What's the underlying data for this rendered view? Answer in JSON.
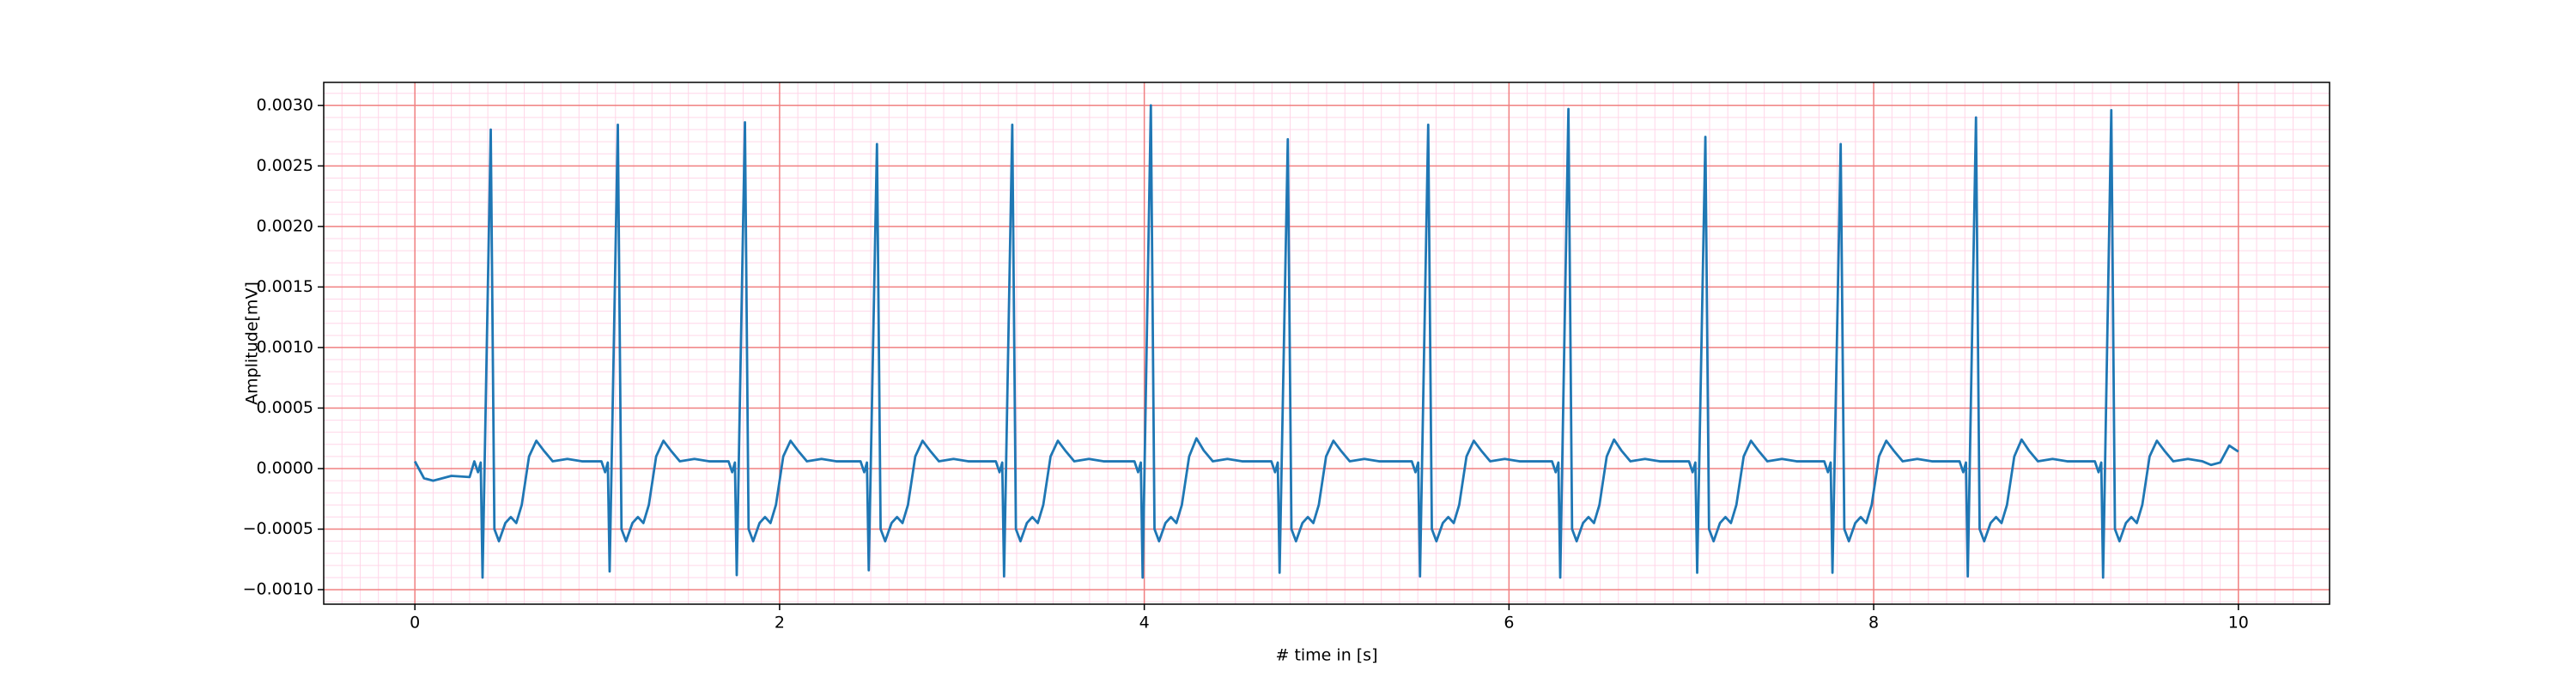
{
  "chart_data": {
    "type": "line",
    "xlabel": "# time in [s]",
    "ylabel": "Amplitude[mV]",
    "color": "#1f77b4",
    "grid": true,
    "minor_grid": true,
    "xlim": [
      -0.5,
      10.5
    ],
    "xticks": [
      0,
      2,
      4,
      6,
      8,
      10
    ],
    "ylim": [
      -0.00112,
      0.00319
    ],
    "yticks": [
      {
        "value": -0.001,
        "label": "−0.0010"
      },
      {
        "value": -0.0005,
        "label": "−0.0005"
      },
      {
        "value": 0,
        "label": "0.0000"
      },
      {
        "value": 0.0005,
        "label": "0.0005"
      },
      {
        "value": 0.001,
        "label": "0.0010"
      },
      {
        "value": 0.0015,
        "label": "0.0015"
      },
      {
        "value": 0.002,
        "label": "0.0020"
      },
      {
        "value": 0.0025,
        "label": "0.0025"
      },
      {
        "value": 0.003,
        "label": "0.0030"
      }
    ],
    "x": [
      0,
      0.05,
      0.1,
      0.2,
      0.3,
      0.326,
      0.346,
      0.361,
      0.371,
      0.416,
      0.436,
      0.461,
      0.496,
      0.526,
      0.556,
      0.586,
      0.626,
      0.666,
      0.706,
      0.756,
      0.836,
      0.916,
      1.023,
      1.043,
      1.058,
      1.068,
      1.113,
      1.133,
      1.158,
      1.193,
      1.223,
      1.253,
      1.283,
      1.323,
      1.363,
      1.403,
      1.453,
      1.533,
      1.613,
      1.72,
      1.74,
      1.755,
      1.765,
      1.81,
      1.83,
      1.855,
      1.89,
      1.92,
      1.95,
      1.98,
      2.02,
      2.06,
      2.1,
      2.15,
      2.23,
      2.31,
      2.444,
      2.464,
      2.479,
      2.489,
      2.534,
      2.554,
      2.579,
      2.614,
      2.644,
      2.674,
      2.704,
      2.744,
      2.784,
      2.824,
      2.874,
      2.954,
      3.034,
      3.186,
      3.206,
      3.221,
      3.231,
      3.276,
      3.296,
      3.321,
      3.356,
      3.386,
      3.416,
      3.446,
      3.486,
      3.526,
      3.566,
      3.616,
      3.696,
      3.776,
      3.946,
      3.966,
      3.981,
      3.991,
      4.036,
      4.056,
      4.081,
      4.116,
      4.146,
      4.176,
      4.206,
      4.246,
      4.286,
      4.326,
      4.376,
      4.456,
      4.536,
      4.697,
      4.717,
      4.732,
      4.742,
      4.787,
      4.807,
      4.832,
      4.867,
      4.897,
      4.927,
      4.957,
      4.997,
      5.037,
      5.077,
      5.127,
      5.207,
      5.287,
      5.467,
      5.487,
      5.502,
      5.512,
      5.557,
      5.577,
      5.602,
      5.637,
      5.667,
      5.697,
      5.727,
      5.767,
      5.807,
      5.847,
      5.897,
      5.977,
      6.057,
      6.236,
      6.256,
      6.271,
      6.281,
      6.326,
      6.346,
      6.371,
      6.406,
      6.436,
      6.466,
      6.496,
      6.536,
      6.576,
      6.616,
      6.666,
      6.746,
      6.826,
      6.987,
      7.007,
      7.022,
      7.032,
      7.077,
      7.097,
      7.122,
      7.157,
      7.187,
      7.217,
      7.247,
      7.287,
      7.327,
      7.367,
      7.417,
      7.497,
      7.577,
      7.729,
      7.749,
      7.764,
      7.774,
      7.819,
      7.839,
      7.864,
      7.899,
      7.929,
      7.959,
      7.989,
      8.029,
      8.069,
      8.109,
      8.159,
      8.239,
      8.319,
      8.471,
      8.491,
      8.506,
      8.516,
      8.561,
      8.581,
      8.606,
      8.641,
      8.671,
      8.701,
      8.731,
      8.771,
      8.811,
      8.851,
      8.901,
      8.981,
      9.061,
      9.213,
      9.233,
      9.248,
      9.258,
      9.303,
      9.323,
      9.348,
      9.383,
      9.413,
      9.443,
      9.473,
      9.513,
      9.553,
      9.593,
      9.643,
      9.723,
      9.803,
      9.85,
      9.9,
      9.95,
      9.98,
      10.0
    ],
    "values": [
      6e-05,
      -8e-05,
      -0.0001,
      -6e-05,
      -7e-05,
      6e-05,
      -3e-05,
      5e-05,
      -0.0009,
      0.0028,
      -0.0005,
      -0.0006,
      -0.00045,
      -0.0004,
      -0.00045,
      -0.0003,
      0.0001,
      0.00023,
      0.00015,
      6e-05,
      8e-05,
      6e-05,
      6e-05,
      -3e-05,
      5e-05,
      -0.00085,
      0.00284,
      -0.0005,
      -0.0006,
      -0.00045,
      -0.0004,
      -0.00045,
      -0.0003,
      0.0001,
      0.00023,
      0.00015,
      6e-05,
      8e-05,
      6e-05,
      6e-05,
      -3e-05,
      5e-05,
      -0.00088,
      0.00286,
      -0.0005,
      -0.0006,
      -0.00045,
      -0.0004,
      -0.00045,
      -0.0003,
      0.0001,
      0.00023,
      0.00015,
      6e-05,
      8e-05,
      6e-05,
      6e-05,
      -3e-05,
      5e-05,
      -0.00084,
      0.00268,
      -0.0005,
      -0.0006,
      -0.00045,
      -0.0004,
      -0.00045,
      -0.0003,
      0.0001,
      0.00023,
      0.00015,
      6e-05,
      8e-05,
      6e-05,
      6e-05,
      -3e-05,
      5e-05,
      -0.00089,
      0.00284,
      -0.0005,
      -0.0006,
      -0.00045,
      -0.0004,
      -0.00045,
      -0.0003,
      0.0001,
      0.00023,
      0.00015,
      6e-05,
      8e-05,
      6e-05,
      6e-05,
      -3e-05,
      5e-05,
      -0.0009,
      0.003,
      -0.0005,
      -0.0006,
      -0.00045,
      -0.0004,
      -0.00045,
      -0.0003,
      0.0001,
      0.00025,
      0.00015,
      6e-05,
      8e-05,
      6e-05,
      6e-05,
      -3e-05,
      5e-05,
      -0.00086,
      0.00272,
      -0.0005,
      -0.0006,
      -0.00045,
      -0.0004,
      -0.00045,
      -0.0003,
      0.0001,
      0.00023,
      0.00015,
      6e-05,
      8e-05,
      6e-05,
      6e-05,
      -3e-05,
      5e-05,
      -0.00089,
      0.00284,
      -0.0005,
      -0.0006,
      -0.00045,
      -0.0004,
      -0.00045,
      -0.0003,
      0.0001,
      0.00023,
      0.00015,
      6e-05,
      8e-05,
      6e-05,
      6e-05,
      -3e-05,
      5e-05,
      -0.0009,
      0.00297,
      -0.0005,
      -0.0006,
      -0.00045,
      -0.0004,
      -0.00045,
      -0.0003,
      0.0001,
      0.00024,
      0.00015,
      6e-05,
      8e-05,
      6e-05,
      6e-05,
      -3e-05,
      5e-05,
      -0.00086,
      0.00274,
      -0.0005,
      -0.0006,
      -0.00045,
      -0.0004,
      -0.00045,
      -0.0003,
      0.0001,
      0.00023,
      0.00015,
      6e-05,
      8e-05,
      6e-05,
      6e-05,
      -3e-05,
      5e-05,
      -0.00086,
      0.00268,
      -0.0005,
      -0.0006,
      -0.00045,
      -0.0004,
      -0.00045,
      -0.0003,
      0.0001,
      0.00023,
      0.00015,
      6e-05,
      8e-05,
      6e-05,
      6e-05,
      -3e-05,
      5e-05,
      -0.00089,
      0.0029,
      -0.0005,
      -0.0006,
      -0.00045,
      -0.0004,
      -0.00045,
      -0.0003,
      0.0001,
      0.00024,
      0.00015,
      6e-05,
      8e-05,
      6e-05,
      6e-05,
      -3e-05,
      5e-05,
      -0.0009,
      0.00296,
      -0.0005,
      -0.0006,
      -0.00045,
      -0.0004,
      -0.00045,
      -0.0003,
      0.0001,
      0.00023,
      0.00015,
      6e-05,
      8e-05,
      6e-05,
      3e-05,
      5e-05,
      0.00019,
      0.00016,
      0.00014
    ]
  }
}
